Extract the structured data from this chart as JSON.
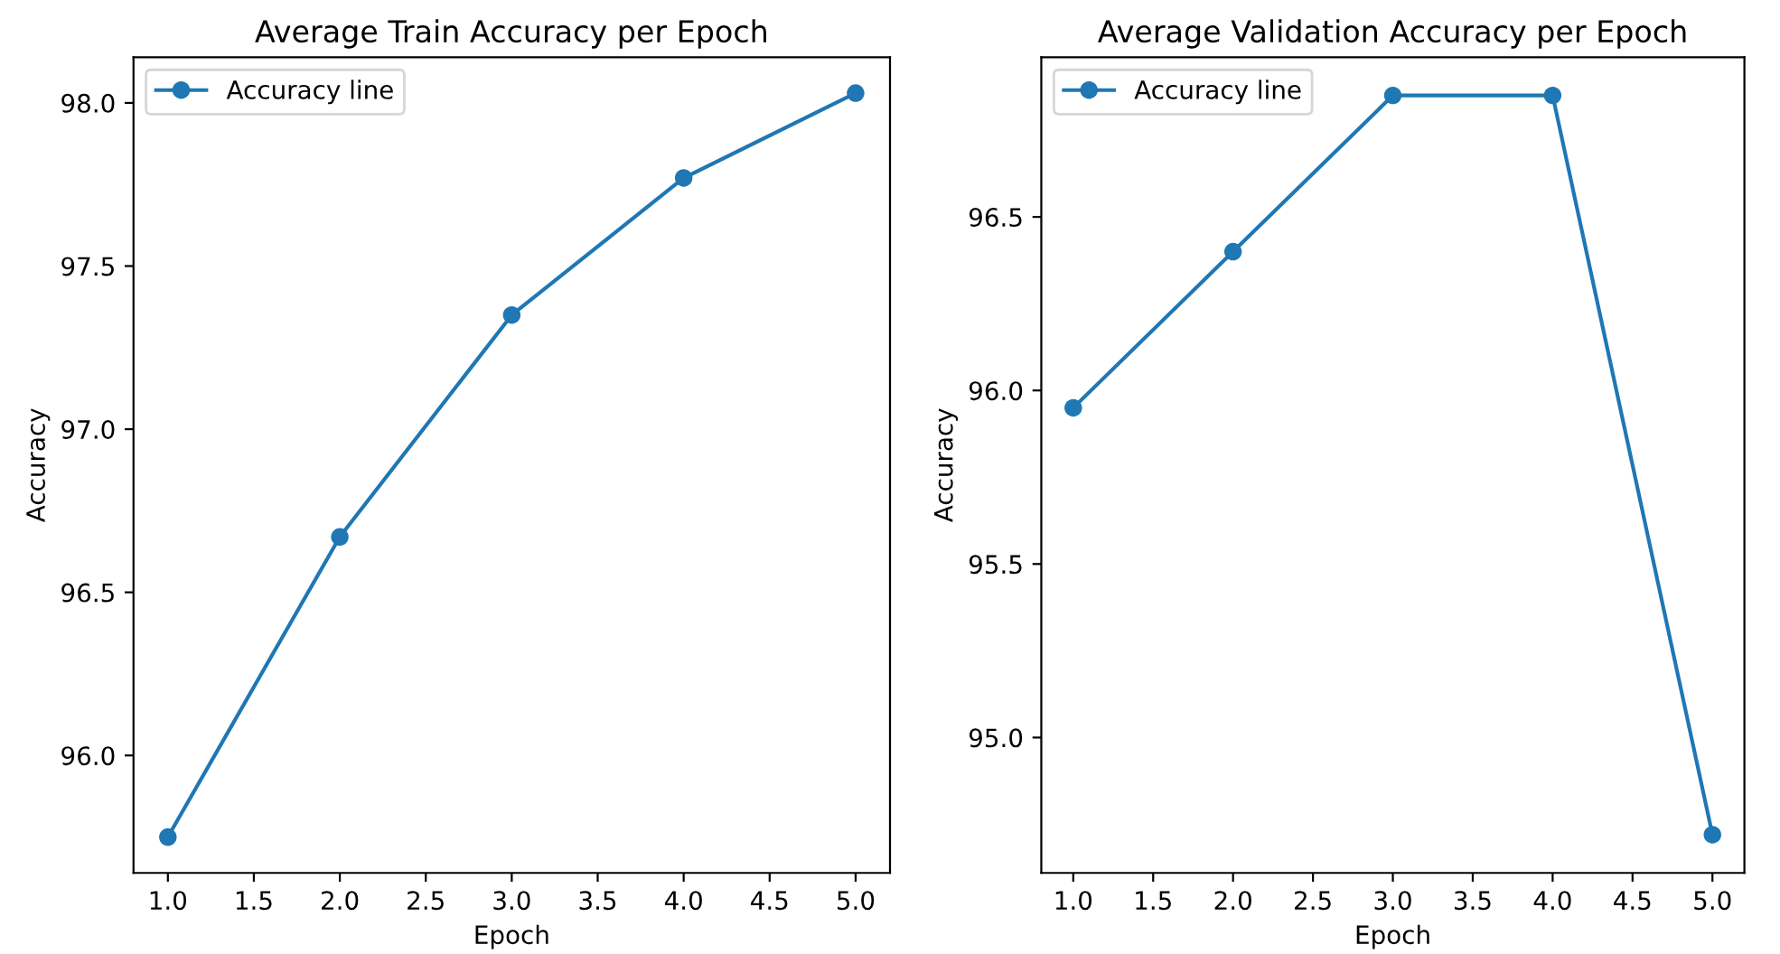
{
  "chart_data": [
    {
      "type": "line",
      "title": "Average Train Accuracy per Epoch",
      "xlabel": "Epoch",
      "ylabel": "Accuracy",
      "x": [
        1,
        2,
        3,
        4,
        5
      ],
      "series": [
        {
          "name": "Accuracy line",
          "color": "#1f77b4",
          "values": [
            95.75,
            96.67,
            97.35,
            97.77,
            98.03
          ]
        }
      ],
      "xlim": [
        0.8,
        5.2
      ],
      "xticks": [
        {
          "value": 1,
          "label": "1.0"
        },
        1.5,
        {
          "value": 2,
          "label": "2.0"
        },
        2.5,
        {
          "value": 3,
          "label": "3.0"
        },
        3.5,
        {
          "value": 4,
          "label": "4.0"
        },
        4.5,
        {
          "value": 5,
          "label": "5.0"
        }
      ],
      "ylim": [
        95.64,
        98.14
      ],
      "yticks": [
        {
          "value": 96,
          "label": "96.0"
        },
        96.5,
        {
          "value": 97,
          "label": "97.0"
        },
        97.5,
        {
          "value": 98,
          "label": "98.0"
        }
      ],
      "grid": false,
      "legend": "top left",
      "marker": "circle",
      "line_style": "solid"
    },
    {
      "type": "line",
      "title": "Average Validation Accuracy per Epoch",
      "xlabel": "Epoch",
      "ylabel": "Accuracy",
      "x": [
        1,
        2,
        3,
        4,
        5
      ],
      "series": [
        {
          "name": "Accuracy line",
          "color": "#1f77b4",
          "values": [
            95.95,
            96.4,
            96.85,
            96.85,
            94.72
          ]
        }
      ],
      "xlim": [
        0.8,
        5.2
      ],
      "xticks": [
        {
          "value": 1,
          "label": "1.0"
        },
        1.5,
        {
          "value": 2,
          "label": "2.0"
        },
        2.5,
        {
          "value": 3,
          "label": "3.0"
        },
        3.5,
        {
          "value": 4,
          "label": "4.0"
        },
        4.5,
        {
          "value": 5,
          "label": "5.0"
        }
      ],
      "ylim": [
        94.61,
        96.96
      ],
      "yticks": [
        {
          "value": 95,
          "label": "95.0"
        },
        95.5,
        {
          "value": 96,
          "label": "96.0"
        },
        96.5
      ],
      "grid": false,
      "legend": "top left",
      "marker": "circle",
      "line_style": "solid"
    }
  ]
}
